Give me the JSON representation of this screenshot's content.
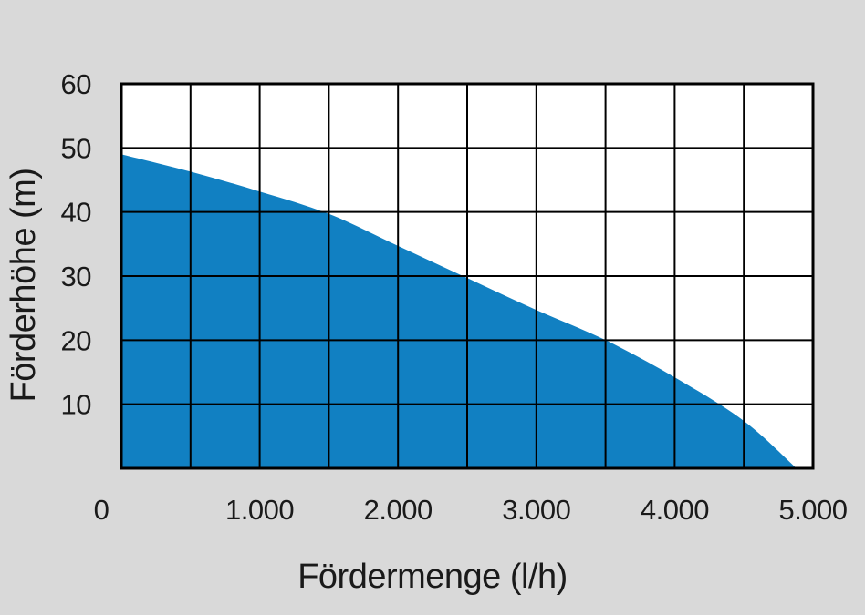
{
  "chart_data": {
    "type": "area",
    "title": "",
    "xlabel": "Fördermenge (l/h)",
    "ylabel": "Förderhöhe (m)",
    "xlim": [
      0,
      5000
    ],
    "ylim": [
      0,
      60
    ],
    "x_gridline_step": 500,
    "y_gridline_step": 10,
    "grid": true,
    "legend": false,
    "x_ticks": [
      {
        "value": 0,
        "label": "0"
      },
      {
        "value": 1000,
        "label": "1.000"
      },
      {
        "value": 2000,
        "label": "2.000"
      },
      {
        "value": 3000,
        "label": "3.000"
      },
      {
        "value": 4000,
        "label": "4.000"
      },
      {
        "value": 5000,
        "label": "5.000"
      }
    ],
    "y_ticks": [
      {
        "value": 10,
        "label": "10"
      },
      {
        "value": 20,
        "label": "20"
      },
      {
        "value": 30,
        "label": "30"
      },
      {
        "value": 40,
        "label": "40"
      },
      {
        "value": 50,
        "label": "50"
      },
      {
        "value": 60,
        "label": "60"
      }
    ],
    "curve_points": [
      [
        0,
        49.0
      ],
      [
        500,
        46.3
      ],
      [
        1000,
        43.2
      ],
      [
        1500,
        39.7
      ],
      [
        2000,
        34.7
      ],
      [
        2500,
        29.7
      ],
      [
        3000,
        24.7
      ],
      [
        3500,
        20.0
      ],
      [
        4000,
        14.2
      ],
      [
        4500,
        7.4
      ],
      [
        4880,
        0.0
      ]
    ],
    "colors": {
      "curve_fill": "#1180c2",
      "grid_line": "#000000",
      "plot_background": "#ffffff",
      "page_background": "#d9d9d9",
      "label_text": "#1a1a1a"
    }
  }
}
